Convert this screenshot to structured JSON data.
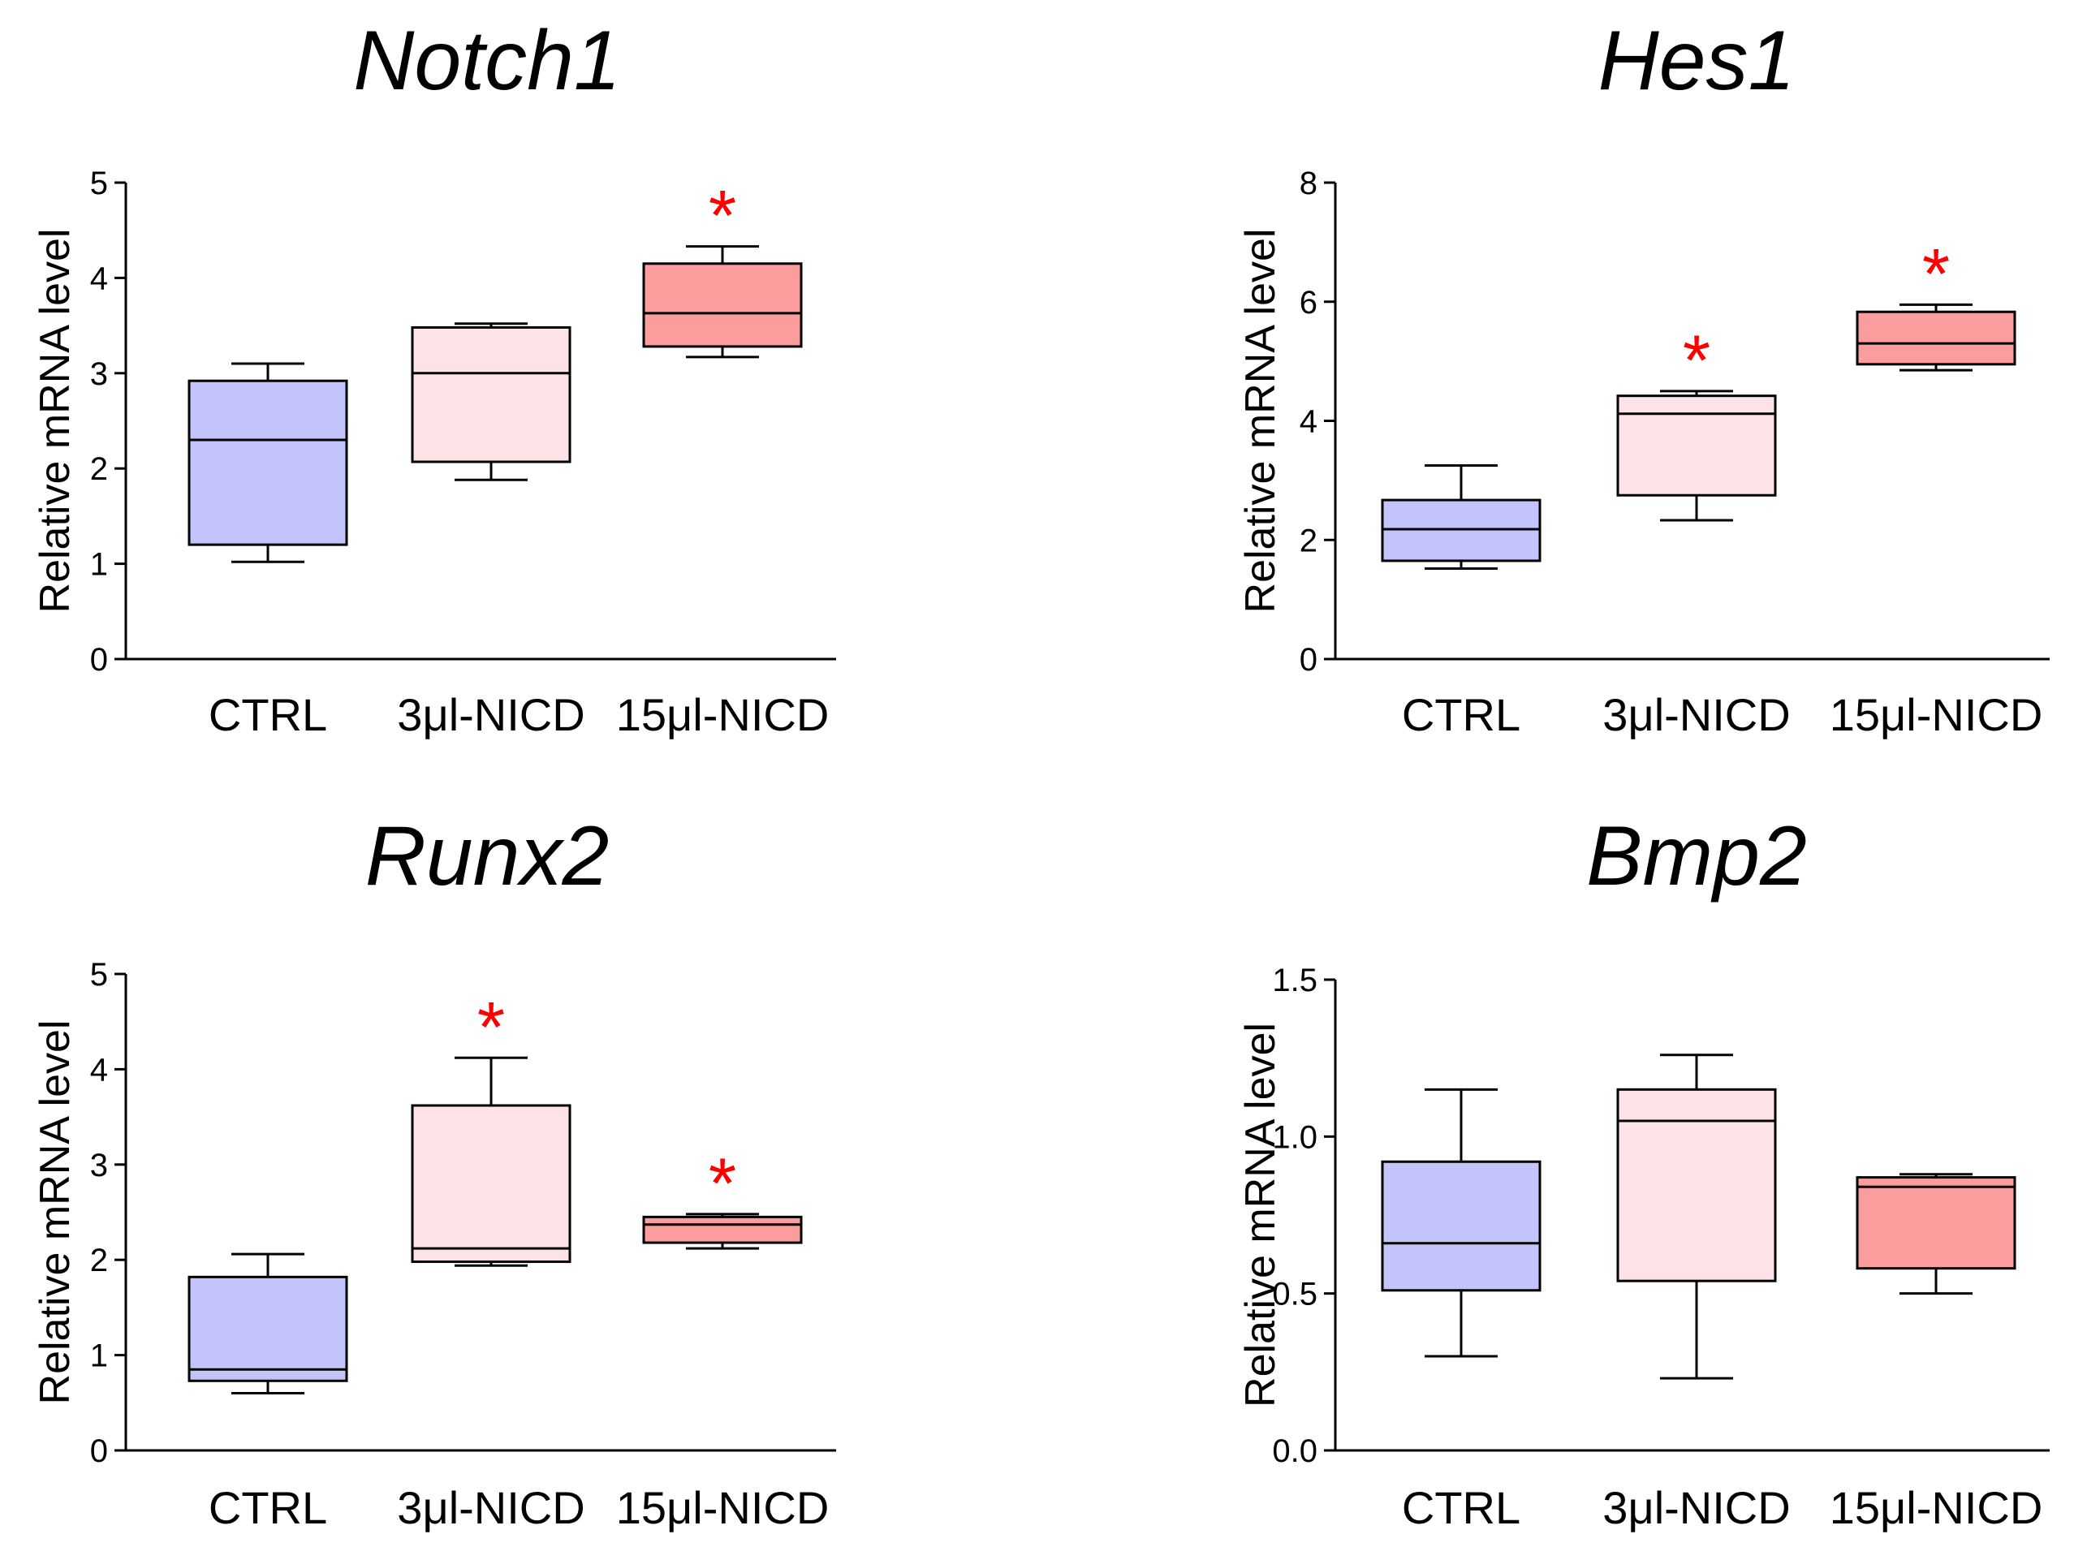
{
  "colors": {
    "ctrl": "#c4c4fd",
    "nicd3": "#fde3e6",
    "nicd15": "#fb9d9d",
    "star": "#ff0000",
    "line": "#000000"
  },
  "chart_data": [
    {
      "type": "box",
      "title": "Notch1",
      "ylabel": "Relative mRNA level",
      "ylim": [
        0,
        5
      ],
      "yticks": [
        "0",
        "1",
        "2",
        "3",
        "4",
        "5"
      ],
      "yticks_values": [
        0,
        1,
        2,
        3,
        4,
        5
      ],
      "categories": [
        "CTRL",
        "3μl-NICD",
        "15μl-NICD"
      ],
      "boxes": [
        {
          "min": 1.02,
          "q1": 1.2,
          "median": 2.3,
          "q3": 2.92,
          "max": 3.1,
          "significant": false,
          "marker": ""
        },
        {
          "min": 1.88,
          "q1": 2.07,
          "median": 3.0,
          "q3": 3.48,
          "max": 3.52,
          "significant": false,
          "marker": ""
        },
        {
          "min": 3.17,
          "q1": 3.28,
          "median": 3.63,
          "q3": 4.15,
          "max": 4.33,
          "significant": true,
          "marker": "*"
        }
      ]
    },
    {
      "type": "box",
      "title": "Hes1",
      "ylabel": "Relative mRNA level",
      "ylim": [
        0,
        8
      ],
      "yticks": [
        "0",
        "2",
        "4",
        "6",
        "8"
      ],
      "yticks_values": [
        0,
        2,
        4,
        6,
        8
      ],
      "categories": [
        "CTRL",
        "3μl-NICD",
        "15μl-NICD"
      ],
      "boxes": [
        {
          "min": 1.52,
          "q1": 1.65,
          "median": 2.18,
          "q3": 2.67,
          "max": 3.25,
          "significant": false,
          "marker": ""
        },
        {
          "min": 2.33,
          "q1": 2.75,
          "median": 4.12,
          "q3": 4.42,
          "max": 4.5,
          "significant": true,
          "marker": "*"
        },
        {
          "min": 4.85,
          "q1": 4.95,
          "median": 5.3,
          "q3": 5.83,
          "max": 5.95,
          "significant": true,
          "marker": "*"
        }
      ]
    },
    {
      "type": "box",
      "title": "Runx2",
      "ylabel": "Relative mRNA level",
      "ylim": [
        0,
        5
      ],
      "yticks": [
        "0",
        "1",
        "2",
        "3",
        "4",
        "5"
      ],
      "yticks_values": [
        0,
        1,
        2,
        3,
        4,
        5
      ],
      "categories": [
        "CTRL",
        "3μl-NICD",
        "15μl-NICD"
      ],
      "boxes": [
        {
          "min": 0.6,
          "q1": 0.73,
          "median": 0.85,
          "q3": 1.82,
          "max": 2.06,
          "significant": false,
          "marker": ""
        },
        {
          "min": 1.94,
          "q1": 1.98,
          "median": 2.12,
          "q3": 3.62,
          "max": 4.12,
          "significant": true,
          "marker": "*"
        },
        {
          "min": 2.12,
          "q1": 2.18,
          "median": 2.37,
          "q3": 2.45,
          "max": 2.48,
          "significant": true,
          "marker": "*"
        }
      ]
    },
    {
      "type": "box",
      "title": "Bmp2",
      "ylabel": "Relative mRNA level",
      "ylim": [
        0,
        1.5
      ],
      "yticks": [
        "0.0",
        "0.5",
        "1.0",
        "1.5"
      ],
      "yticks_values": [
        0,
        0.5,
        1.0,
        1.5
      ],
      "categories": [
        "CTRL",
        "3μl-NICD",
        "15μl-NICD"
      ],
      "boxes": [
        {
          "min": 0.3,
          "q1": 0.51,
          "median": 0.66,
          "q3": 0.92,
          "max": 1.15,
          "significant": false,
          "marker": ""
        },
        {
          "min": 0.23,
          "q1": 0.54,
          "median": 1.05,
          "q3": 1.15,
          "max": 1.26,
          "significant": false,
          "marker": ""
        },
        {
          "min": 0.5,
          "q1": 0.58,
          "median": 0.84,
          "q3": 0.87,
          "max": 0.88,
          "significant": false,
          "marker": ""
        }
      ]
    }
  ]
}
